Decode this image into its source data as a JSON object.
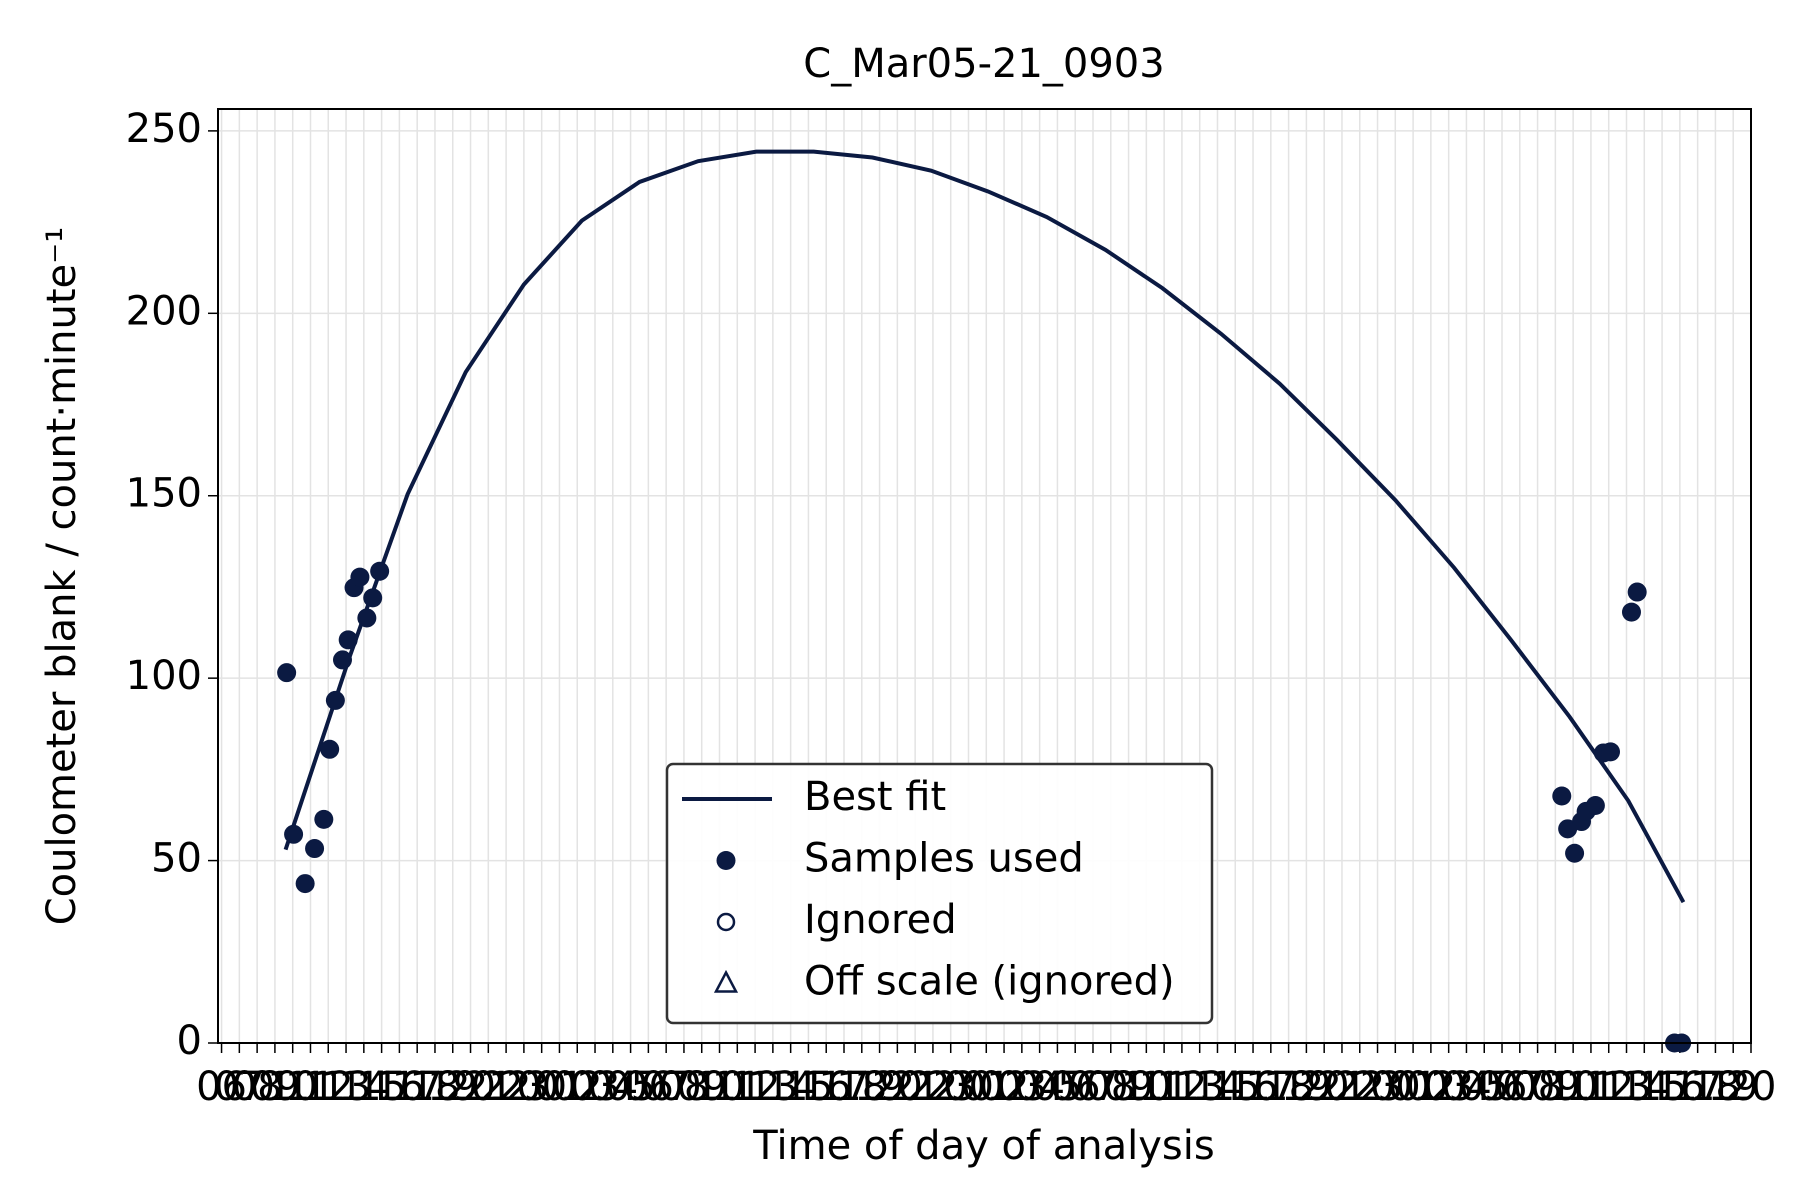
{
  "chart_data": {
    "type": "scatter",
    "title": "C_Mar05-21_0903",
    "x_label": "Time of day of analysis",
    "y_label": "Coulometer blank / count·minute⁻¹",
    "xlim": [
      -0.2,
      86
    ],
    "ylim": [
      0,
      256
    ],
    "yticks": [
      0,
      50,
      100,
      150,
      200,
      250
    ],
    "xticks": [
      {
        "value": 0,
        "label": "06"
      },
      {
        "value": 1,
        "label": "07"
      },
      {
        "value": 2,
        "label": "08"
      },
      {
        "value": 3,
        "label": "09"
      },
      {
        "value": 4,
        "label": "10"
      },
      {
        "value": 5,
        "label": "11"
      },
      {
        "value": 6,
        "label": "12"
      },
      {
        "value": 7,
        "label": "13"
      },
      {
        "value": 8,
        "label": "14"
      },
      {
        "value": 9,
        "label": "15"
      },
      {
        "value": 10,
        "label": "16"
      },
      {
        "value": 11,
        "label": "17"
      },
      {
        "value": 12,
        "label": "18"
      },
      {
        "value": 13,
        "label": "19"
      },
      {
        "value": 14,
        "label": "20"
      },
      {
        "value": 15,
        "label": "21"
      },
      {
        "value": 16,
        "label": "22"
      },
      {
        "value": 17,
        "label": "23"
      },
      {
        "value": 18,
        "label": "00"
      },
      {
        "value": 19,
        "label": "01"
      },
      {
        "value": 20,
        "label": "02"
      },
      {
        "value": 21,
        "label": "03"
      },
      {
        "value": 22,
        "label": "04"
      },
      {
        "value": 23,
        "label": "05"
      },
      {
        "value": 24,
        "label": "06"
      },
      {
        "value": 25,
        "label": "07"
      },
      {
        "value": 26,
        "label": "08"
      },
      {
        "value": 27,
        "label": "09"
      },
      {
        "value": 28,
        "label": "10"
      },
      {
        "value": 29,
        "label": "11"
      },
      {
        "value": 30,
        "label": "12"
      },
      {
        "value": 31,
        "label": "13"
      },
      {
        "value": 32,
        "label": "14"
      },
      {
        "value": 33,
        "label": "15"
      },
      {
        "value": 34,
        "label": "16"
      },
      {
        "value": 35,
        "label": "17"
      },
      {
        "value": 36,
        "label": "18"
      },
      {
        "value": 37,
        "label": "19"
      },
      {
        "value": 38,
        "label": "20"
      },
      {
        "value": 39,
        "label": "21"
      },
      {
        "value": 40,
        "label": "22"
      },
      {
        "value": 41,
        "label": "23"
      },
      {
        "value": 42,
        "label": "00"
      },
      {
        "value": 43,
        "label": "01"
      },
      {
        "value": 44,
        "label": "02"
      },
      {
        "value": 45,
        "label": "03"
      },
      {
        "value": 46,
        "label": "04"
      },
      {
        "value": 47,
        "label": "05"
      },
      {
        "value": 48,
        "label": "06"
      },
      {
        "value": 49,
        "label": "07"
      },
      {
        "value": 50,
        "label": "08"
      },
      {
        "value": 51,
        "label": "09"
      },
      {
        "value": 52,
        "label": "10"
      },
      {
        "value": 53,
        "label": "11"
      },
      {
        "value": 54,
        "label": "12"
      },
      {
        "value": 55,
        "label": "13"
      },
      {
        "value": 56,
        "label": "14"
      },
      {
        "value": 57,
        "label": "15"
      },
      {
        "value": 58,
        "label": "16"
      },
      {
        "value": 59,
        "label": "17"
      },
      {
        "value": 60,
        "label": "18"
      },
      {
        "value": 61,
        "label": "19"
      },
      {
        "value": 62,
        "label": "20"
      },
      {
        "value": 63,
        "label": "21"
      },
      {
        "value": 64,
        "label": "22"
      },
      {
        "value": 65,
        "label": "23"
      },
      {
        "value": 66,
        "label": "00"
      },
      {
        "value": 67,
        "label": "01"
      },
      {
        "value": 68,
        "label": "02"
      },
      {
        "value": 69,
        "label": "03"
      },
      {
        "value": 70,
        "label": "04"
      },
      {
        "value": 71,
        "label": "05"
      },
      {
        "value": 72,
        "label": "06"
      },
      {
        "value": 73,
        "label": "07"
      },
      {
        "value": 74,
        "label": "08"
      },
      {
        "value": 75,
        "label": "09"
      },
      {
        "value": 76,
        "label": "10"
      },
      {
        "value": 77,
        "label": "11"
      },
      {
        "value": 78,
        "label": "12"
      },
      {
        "value": 79,
        "label": "13"
      },
      {
        "value": 80,
        "label": "14"
      },
      {
        "value": 81,
        "label": "15"
      },
      {
        "value": 82,
        "label": "16"
      },
      {
        "value": 83,
        "label": "17"
      },
      {
        "value": 84,
        "label": "18"
      },
      {
        "value": 85,
        "label": "19"
      },
      {
        "value": 86,
        "label": "20"
      }
    ],
    "grid": true,
    "legend": "lower center",
    "series": [
      {
        "name": "Best fit",
        "type": "line",
        "color": "#0b1a42",
        "x": [
          3.6,
          7.19,
          10.46,
          13.73,
          17,
          20.26,
          23.5,
          26.8,
          30.07,
          33.3,
          36.6,
          39.9,
          43.1,
          46.4,
          49.7,
          52.9,
          56.2,
          59.5,
          62.7,
          66,
          69.3,
          72.5,
          75.8,
          79.1,
          82.2
        ],
        "values": [
          53,
          105.7,
          150.4,
          183.9,
          207.9,
          225.4,
          236,
          241.7,
          244.3,
          244.3,
          242.7,
          239.1,
          233.4,
          226.4,
          217.4,
          206.9,
          194.4,
          180.7,
          165.4,
          148.8,
          130.3,
          110.5,
          89.4,
          66.4,
          38.6
        ]
      },
      {
        "name": "Samples used",
        "type": "scatter",
        "marker": "circle",
        "color": "#0b1a42",
        "x": [
          3.66,
          4.05,
          4.7,
          5.23,
          5.75,
          6.08,
          6.4,
          6.8,
          7.12,
          7.45,
          7.78,
          8.17,
          8.5,
          8.89,
          75.36,
          75.69,
          76.08,
          76.47,
          76.73,
          77.25,
          77.7,
          78.1,
          79.28,
          79.6,
          81.7,
          82.1
        ],
        "values": [
          101.5,
          57.2,
          43.7,
          53.3,
          61.3,
          80.5,
          93.9,
          105,
          110.5,
          124.8,
          127.7,
          116.5,
          122,
          129.3,
          67.7,
          58.7,
          52,
          60.7,
          63.5,
          65.1,
          79.5,
          79.8,
          118.1,
          123.6,
          0,
          0
        ]
      },
      {
        "name": "Ignored",
        "type": "scatter",
        "marker": "circle-open",
        "color": "#0b1a42",
        "x": [],
        "values": []
      },
      {
        "name": "Off scale (ignored)",
        "type": "scatter",
        "marker": "triangle-open",
        "color": "#0b1a42",
        "x": [],
        "values": []
      }
    ]
  }
}
